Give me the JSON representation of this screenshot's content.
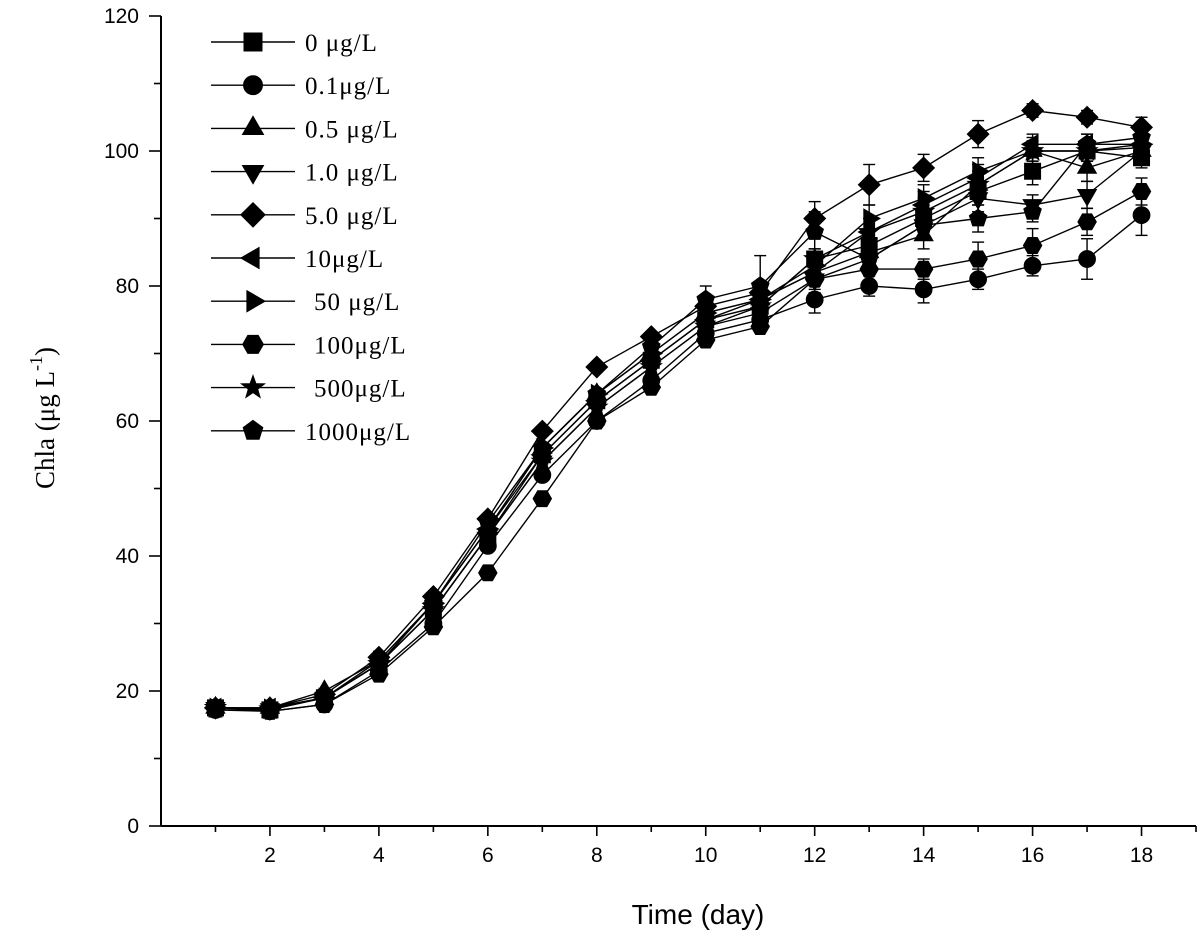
{
  "chart_data": {
    "type": "line",
    "xlabel": "Time (day)",
    "ylabel": "Chla (μg L",
    "ylabel_superscript": "-1",
    "ylabel_suffix": ")",
    "xlim": [
      0,
      19
    ],
    "ylim": [
      0,
      120
    ],
    "xticks": [
      2,
      4,
      6,
      8,
      10,
      12,
      14,
      16,
      18
    ],
    "yticks": [
      0,
      20,
      40,
      60,
      80,
      100,
      120
    ],
    "legend_position": "top-left",
    "grid": false,
    "x": [
      1,
      2,
      3,
      4,
      5,
      6,
      7,
      8,
      9,
      10,
      11,
      12,
      13,
      14,
      15,
      16,
      17,
      18
    ],
    "series": [
      {
        "name": "0  μg/L",
        "marker": "square",
        "values": [
          17.5,
          17.2,
          19.0,
          24.0,
          32.0,
          43.0,
          55.0,
          63.0,
          69.0,
          75.0,
          77.0,
          84.0,
          86.0,
          90.0,
          94.0,
          97.0,
          100.0,
          99.0
        ],
        "errors": [
          0,
          0,
          0,
          0,
          0,
          0,
          0,
          0,
          0,
          0,
          0,
          1.5,
          1.5,
          2,
          2,
          2,
          1.5,
          1.5
        ]
      },
      {
        "name": "0.1μg/L",
        "marker": "circle",
        "values": [
          17.2,
          17.0,
          18.0,
          23.0,
          30.0,
          41.5,
          52.0,
          60.0,
          66.0,
          73.0,
          75.0,
          78.0,
          80.0,
          79.5,
          81.0,
          83.0,
          84.0,
          90.5
        ],
        "errors": [
          0,
          0,
          0,
          0,
          0,
          0,
          0,
          0,
          0,
          0,
          0,
          2,
          1.5,
          2,
          1.5,
          1.5,
          3,
          3
        ]
      },
      {
        "name": "0.5 μg/L",
        "marker": "triangle-up",
        "values": [
          17.5,
          17.5,
          20.0,
          24.5,
          33.0,
          44.0,
          56.0,
          64.0,
          70.0,
          76.0,
          78.0,
          82.0,
          85.0,
          87.5,
          95.0,
          100.0,
          97.5,
          100.0
        ],
        "errors": [
          0,
          0,
          0,
          0,
          0,
          0,
          0,
          0,
          0,
          0,
          0,
          1.5,
          2,
          2,
          2,
          2,
          2,
          1.5
        ]
      },
      {
        "name": "1.0 μg/L",
        "marker": "triangle-down",
        "values": [
          17.5,
          17.3,
          19.0,
          24.0,
          32.0,
          43.0,
          54.0,
          62.0,
          68.0,
          74.0,
          76.0,
          81.0,
          84.0,
          89.0,
          93.0,
          92.0,
          93.5,
          100.0
        ],
        "errors": [
          0,
          0,
          0,
          0,
          0,
          0,
          0,
          0,
          0,
          0,
          0,
          1.5,
          2,
          2,
          2,
          1.5,
          2,
          1.5
        ]
      },
      {
        "name": "5.0 μg/L",
        "marker": "diamond",
        "values": [
          17.5,
          17.5,
          19.5,
          25.0,
          34.0,
          45.5,
          58.5,
          68.0,
          72.5,
          77.0,
          79.0,
          90.0,
          95.0,
          97.5,
          102.5,
          106.0,
          105.0,
          103.5
        ],
        "errors": [
          0,
          0,
          0,
          0,
          0,
          0,
          0,
          0,
          0,
          0,
          0,
          2.5,
          3,
          2,
          2,
          1,
          1,
          1.5
        ]
      },
      {
        "name": "10μg/L",
        "marker": "triangle-left",
        "values": [
          17.5,
          17.5,
          19.0,
          24.0,
          33.0,
          44.0,
          55.0,
          63.0,
          69.0,
          75.0,
          78.0,
          82.0,
          88.0,
          92.0,
          96.0,
          101.0,
          101.0,
          101.0
        ],
        "errors": [
          0,
          0,
          0,
          0,
          0,
          0,
          0,
          0,
          0,
          0,
          0,
          1.5,
          2,
          2,
          2,
          1.5,
          1.5,
          1.5
        ]
      },
      {
        "name": "50 μg/L",
        "marker": "triangle-right",
        "values": [
          17.5,
          17.4,
          19.0,
          24.5,
          33.0,
          44.0,
          56.0,
          64.0,
          70.0,
          76.0,
          78.0,
          83.0,
          90.0,
          93.0,
          97.0,
          100.0,
          100.0,
          101.0
        ],
        "errors": [
          0,
          0,
          0,
          0,
          0,
          0,
          0,
          0,
          0,
          0,
          0,
          1.5,
          2,
          2,
          2,
          1.5,
          1.5,
          1.5
        ]
      },
      {
        "name": "100μg/L",
        "marker": "hexagon",
        "values": [
          17.5,
          17.0,
          18.0,
          22.5,
          29.5,
          37.5,
          48.5,
          60.0,
          65.0,
          72.0,
          74.0,
          81.0,
          82.5,
          82.5,
          84.0,
          86.0,
          89.5,
          94.0
        ],
        "errors": [
          0,
          0,
          0,
          0,
          0,
          0,
          0,
          0,
          0,
          0,
          0,
          2,
          2,
          1.5,
          2.5,
          2.5,
          2,
          2
        ]
      },
      {
        "name": "500μg/L",
        "marker": "star",
        "values": [
          17.5,
          17.3,
          19.0,
          24.0,
          32.0,
          43.0,
          54.0,
          62.0,
          68.0,
          74.0,
          77.0,
          84.0,
          88.0,
          91.0,
          95.0,
          100.0,
          100.0,
          100.5
        ],
        "errors": [
          0,
          0,
          0,
          0,
          0,
          0,
          0,
          0,
          0,
          0,
          0,
          1.5,
          2,
          2,
          2,
          1.5,
          1.5,
          1.5
        ]
      },
      {
        "name": "1000μg/L",
        "marker": "pentagon",
        "values": [
          17.5,
          17.5,
          19.0,
          24.0,
          33.0,
          45.0,
          56.0,
          64.0,
          71.0,
          78.0,
          80.0,
          88.0,
          84.0,
          89.0,
          90.0,
          91.0,
          101.0,
          102.0
        ],
        "errors": [
          0,
          0,
          0,
          0,
          0,
          0,
          0,
          0,
          0,
          2,
          4.5,
          3,
          2,
          2,
          2,
          1.5,
          1.5,
          1.5
        ]
      }
    ]
  }
}
